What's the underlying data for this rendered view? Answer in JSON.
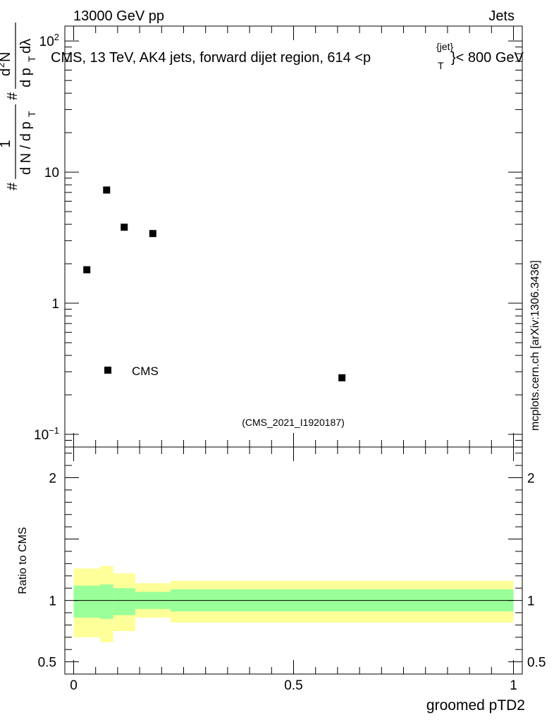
{
  "header": {
    "left": "13000 GeV pp",
    "right": "Jets"
  },
  "side_label": "mcplots.cern.ch [arXiv:1306.3436]",
  "chart_data": [
    {
      "type": "scatter",
      "title": "CMS, 13 TeV, AK4 jets, forward dijet region, 614 <p",
      "title_sup": "{jet}",
      "title_sub": "T",
      "title_end": "}< 800 GeV",
      "ylabel": {
        "frac_top_1": "1",
        "frac_bottom": "d N / d p",
        "frac_bottom_sub": "T",
        "hash": "#",
        "frac2_top": "d",
        "frac2_top_sup": "2",
        "frac2_top_end": "N",
        "frac2_bottom": "d p",
        "frac2_bottom_sub": "T",
        "frac2_bottom_end": " dλ",
        "hash2": "#"
      },
      "yscale": "log",
      "ylim": [
        0.08,
        130
      ],
      "xlim": [
        -0.02,
        1.02
      ],
      "y_ticks": [
        {
          "value": 100,
          "base": "10",
          "exp": "2"
        },
        {
          "value": 10,
          "base": "10",
          "exp": ""
        },
        {
          "value": 1,
          "base": "1",
          "exp": ""
        },
        {
          "value": 0.1,
          "base": "10",
          "exp": "−1"
        }
      ],
      "series": [
        {
          "name": "CMS",
          "x": [
            0.03,
            0.075,
            0.115,
            0.18,
            0.61
          ],
          "y": [
            1.8,
            7.3,
            3.8,
            3.4,
            0.27
          ]
        }
      ],
      "legend": {
        "label": "CMS",
        "placement": "lower-left"
      },
      "watermark": "(CMS_2021_I1920187)"
    },
    {
      "type": "area",
      "ylabel": "Ratio to CMS",
      "xlabel": "groomed pTD2",
      "ylim": [
        0.4,
        2.25
      ],
      "xlim": [
        -0.02,
        1.02
      ],
      "x_ticks": [
        {
          "value": 0,
          "label": "0"
        },
        {
          "value": 0.5,
          "label": "0.5"
        },
        {
          "value": 1,
          "label": "1"
        }
      ],
      "y_ticks": [
        {
          "value": 2,
          "label": "2"
        },
        {
          "value": 1,
          "label": "1"
        },
        {
          "value": 0.5,
          "label": "0.5"
        }
      ],
      "reference_line": 1,
      "bins": [
        {
          "x0": 0.0,
          "x1": 0.06,
          "stat_lo": 0.86,
          "stat_hi": 1.12,
          "tot_lo": 0.7,
          "tot_hi": 1.26
        },
        {
          "x0": 0.06,
          "x1": 0.09,
          "stat_lo": 0.85,
          "stat_hi": 1.13,
          "tot_lo": 0.66,
          "tot_hi": 1.28
        },
        {
          "x0": 0.09,
          "x1": 0.14,
          "stat_lo": 0.88,
          "stat_hi": 1.1,
          "tot_lo": 0.75,
          "tot_hi": 1.22
        },
        {
          "x0": 0.14,
          "x1": 0.22,
          "stat_lo": 0.93,
          "stat_hi": 1.07,
          "tot_lo": 0.86,
          "tot_hi": 1.14
        },
        {
          "x0": 0.22,
          "x1": 1.0,
          "stat_lo": 0.91,
          "stat_hi": 1.09,
          "tot_lo": 0.82,
          "tot_hi": 1.16
        }
      ],
      "colors": {
        "stat": "#99ff99",
        "total": "#ffff99",
        "line": "#000000",
        "marker": "#000000"
      }
    }
  ]
}
